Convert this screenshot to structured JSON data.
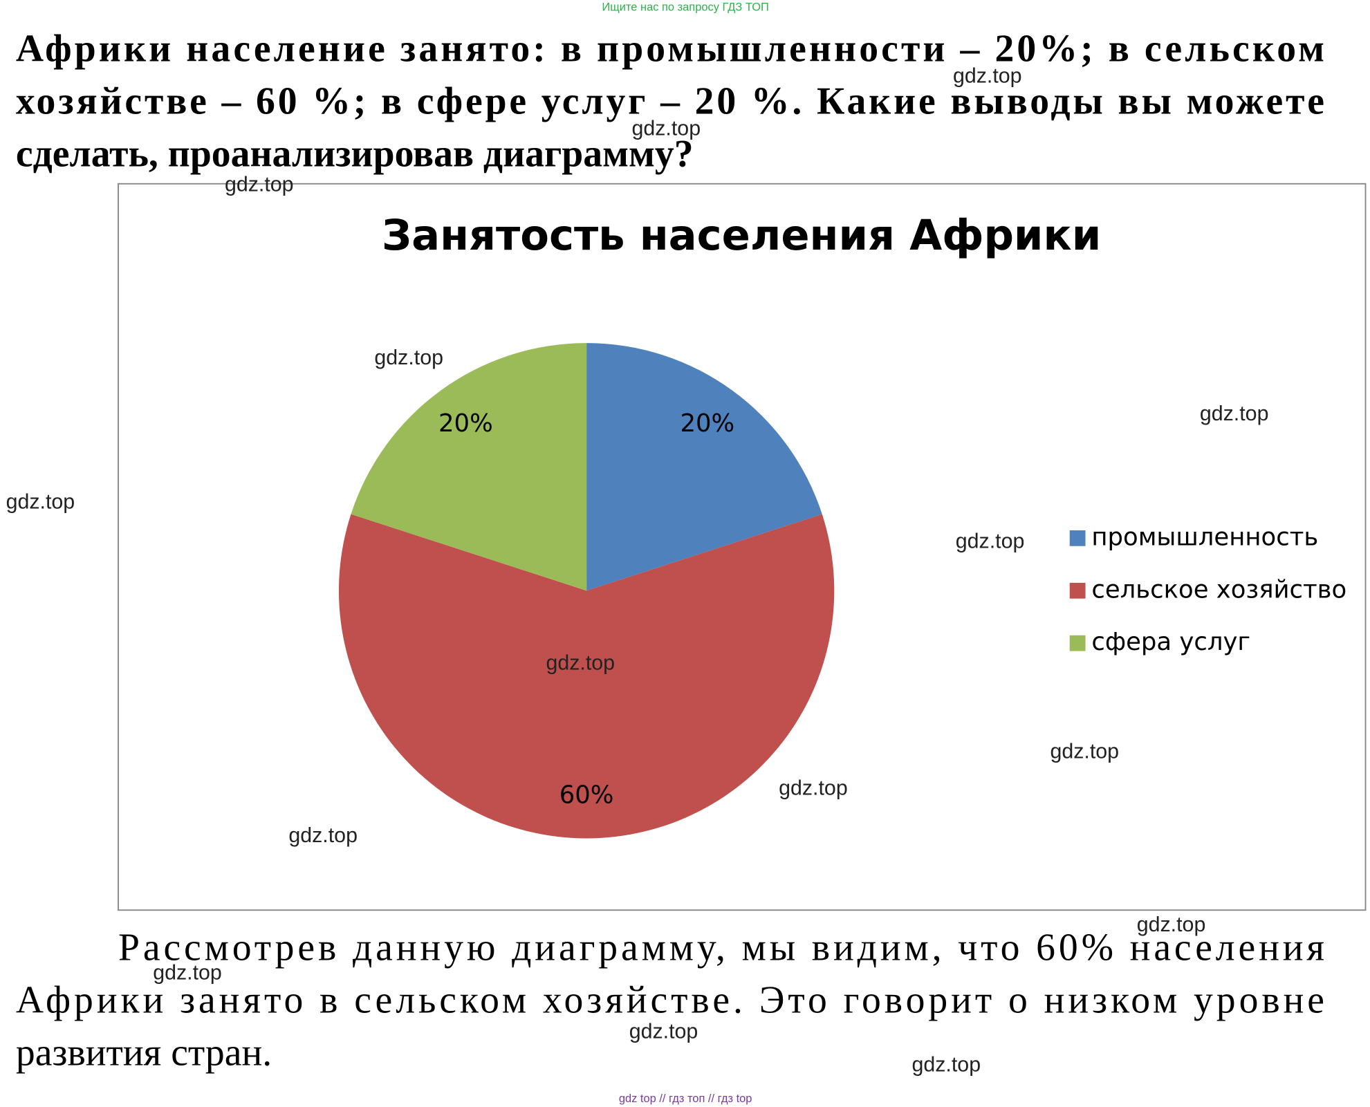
{
  "header": "Ищите нас по запросу ГДЗ ТОП",
  "question": {
    "lines": [
      "Африки население занято: в промышленности – 20%; в сельском",
      "хозяйстве – 60 %; в сфере услуг – 20 %. Какие выводы вы можете",
      "сделать, проанализировав диаграмму?"
    ]
  },
  "chart_data": {
    "type": "pie",
    "title": "Занятость населения Африки",
    "categories": [
      "промышленность",
      "сельское хозяйство",
      "сфера услуг"
    ],
    "values": [
      20,
      60,
      20
    ],
    "value_labels": [
      "20%",
      "60%",
      "20%"
    ],
    "colors": [
      "#4f81bd",
      "#c0504d",
      "#9bbb59"
    ],
    "legend": "right"
  },
  "answer": {
    "lines": [
      "Рассмотрев данную диаграмму, мы видим, что 60% населения",
      "Африки занято в сельском хозяйстве. Это говорит о низком уровне",
      "развития стран."
    ]
  },
  "watermarks": [
    "gdz.top",
    "gdz.top",
    "gdz.top",
    "gdz.top",
    "gdz.top",
    "gdz.top",
    "gdz.top",
    "gdz.top",
    "gdz.top",
    "gdz.top",
    "gdz.top",
    "gdz.top",
    "gdz.top",
    "gdz.top",
    "gdz.top"
  ],
  "footer": "gdz top // гдз топ // гдз top"
}
